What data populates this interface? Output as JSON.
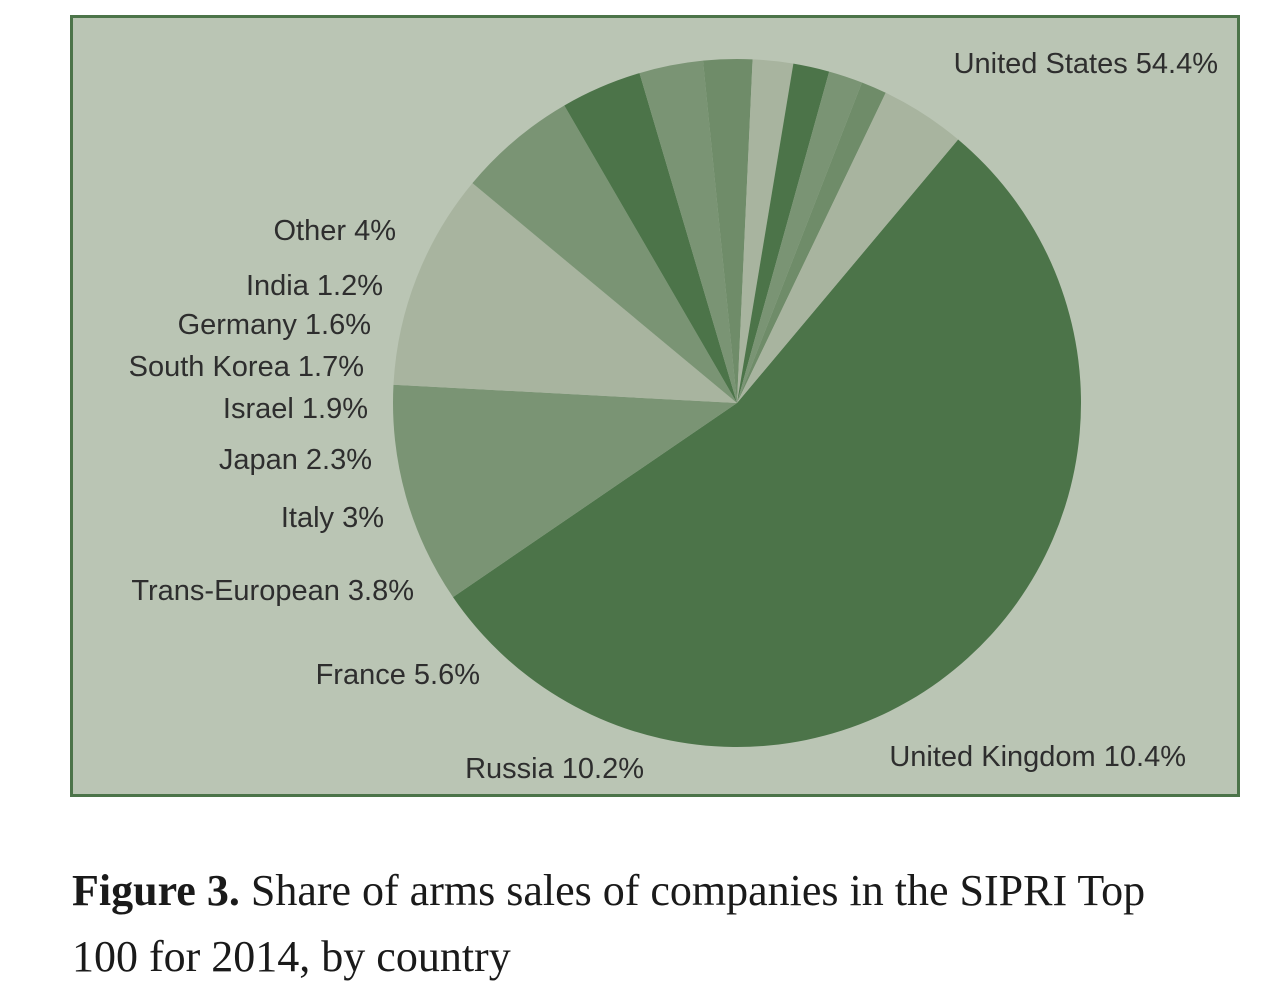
{
  "chart_data": {
    "type": "pie",
    "start_angle_deg": -50,
    "slices": [
      {
        "label": "United States 54.4%",
        "value": 54.4,
        "color": "#4c7449"
      },
      {
        "label": "United Kingdom 10.4%",
        "value": 10.4,
        "color": "#7a9474"
      },
      {
        "label": "Russia 10.2%",
        "value": 10.2,
        "color": "#a8b49f"
      },
      {
        "label": "France 5.6%",
        "value": 5.6,
        "color": "#7a9474"
      },
      {
        "label": "Trans-European 3.8%",
        "value": 3.8,
        "color": "#4c7449"
      },
      {
        "label": "Italy 3%",
        "value": 3.0,
        "color": "#7a9474"
      },
      {
        "label": "Japan 2.3%",
        "value": 2.3,
        "color": "#6f8c69"
      },
      {
        "label": "Israel 1.9%",
        "value": 1.9,
        "color": "#a8b49f"
      },
      {
        "label": "South Korea 1.7%",
        "value": 1.7,
        "color": "#4c7449"
      },
      {
        "label": "Germany 1.6%",
        "value": 1.6,
        "color": "#7a9474"
      },
      {
        "label": "India 1.2%",
        "value": 1.2,
        "color": "#6f8c69"
      },
      {
        "label": "Other 4%",
        "value": 4.0,
        "color": "#a8b49f"
      }
    ]
  },
  "caption": {
    "figure_label": "Figure 3.",
    "text": " Share of arms sales of companies in the SIPRI Top 100 for 2014, by country"
  }
}
